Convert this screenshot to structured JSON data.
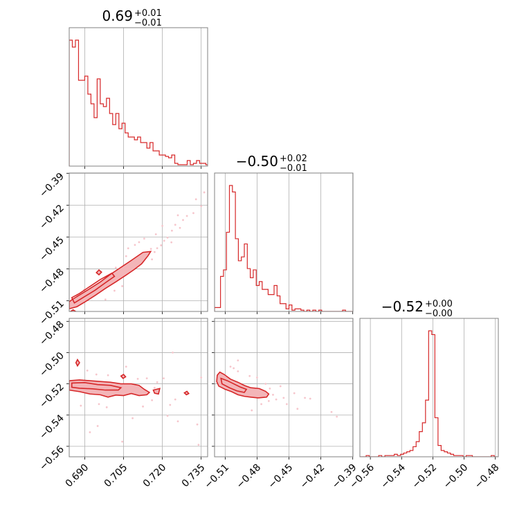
{
  "chart_data": {
    "type": "corner",
    "colors": {
      "main": "#d62728",
      "fill": "#f3b5b8",
      "points": "#f6c6cc",
      "grid": "#b0b0b0",
      "frame": "#808080"
    },
    "params": [
      {
        "title_median": "0.69",
        "title_plus": "+0.01",
        "title_minus": "−0.01",
        "range": [
          0.684,
          0.7375
        ],
        "ticks": [
          0.69,
          0.705,
          0.72,
          0.735
        ],
        "tick_labels": [
          "0.690",
          "0.705",
          "0.720",
          "0.735"
        ]
      },
      {
        "title_median": "−0.50",
        "title_plus": "+0.02",
        "title_minus": "−0.01",
        "range": [
          -0.52,
          -0.3898
        ],
        "ticks": [
          -0.51,
          -0.48,
          -0.45,
          -0.42,
          -0.39
        ],
        "tick_labels": [
          "−0.51",
          "−0.48",
          "−0.45",
          "−0.42",
          "−0.39"
        ]
      },
      {
        "title_median": "−0.52",
        "title_plus": "+0.00",
        "title_minus": "−0.00",
        "range": [
          -0.5667,
          -0.4781
        ],
        "ticks": [
          -0.56,
          -0.54,
          -0.52,
          -0.5,
          -0.48
        ],
        "tick_labels": [
          "−0.56",
          "−0.54",
          "−0.52",
          "−0.50",
          "−0.48"
        ]
      }
    ],
    "histograms": [
      {
        "x": [
          0.684,
          0.6852,
          0.6864,
          0.6876,
          0.6888,
          0.69,
          0.6912,
          0.6924,
          0.6936,
          0.6948,
          0.696,
          0.6972,
          0.6984,
          0.6996,
          0.7008,
          0.702,
          0.7032,
          0.7044,
          0.7056,
          0.7068,
          0.708,
          0.7092,
          0.7104,
          0.7116,
          0.7128,
          0.714,
          0.7152,
          0.7164,
          0.7176,
          0.7188,
          0.72,
          0.7212,
          0.7224,
          0.7236,
          0.7248,
          0.726,
          0.7272,
          0.7284,
          0.7296,
          0.7308,
          0.732,
          0.7332,
          0.7344,
          0.7356,
          0.7368
        ],
        "values": [
          91,
          86,
          91,
          62,
          62,
          65,
          52,
          45,
          35,
          63,
          45,
          43,
          49,
          38,
          30,
          38,
          27,
          31,
          24,
          21,
          21,
          19,
          21,
          17,
          17,
          13,
          17,
          11,
          11,
          8,
          8,
          7,
          6,
          8,
          2,
          1,
          1,
          1,
          4,
          1,
          2,
          4,
          2,
          2,
          1
        ]
      },
      {
        "x": [
          -0.52,
          -0.5172,
          -0.5144,
          -0.5116,
          -0.5088,
          -0.506,
          -0.5032,
          -0.5004,
          -0.4976,
          -0.4948,
          -0.492,
          -0.4892,
          -0.4864,
          -0.4836,
          -0.4808,
          -0.478,
          -0.4752,
          -0.4724,
          -0.4696,
          -0.4668,
          -0.464,
          -0.4612,
          -0.4584,
          -0.4556,
          -0.4528,
          -0.45,
          -0.4472,
          -0.4444,
          -0.4416,
          -0.4388,
          -0.436,
          -0.4332,
          -0.4304,
          -0.4276,
          -0.4248,
          -0.422,
          -0.4192,
          -0.4164,
          -0.4136,
          -0.4108,
          -0.408,
          -0.4052,
          -0.4024,
          -0.3996,
          -0.3968,
          -0.394,
          -0.3912
        ],
        "values": [
          3,
          3,
          27,
          32,
          61,
          97,
          92,
          56,
          39,
          42,
          52,
          33,
          26,
          32,
          20,
          23,
          17,
          17,
          13,
          13,
          20,
          12,
          6,
          6,
          2,
          5,
          1,
          2,
          2,
          1,
          0,
          1,
          0,
          1,
          0,
          1,
          0,
          0,
          0,
          0,
          0,
          0,
          0,
          1,
          0,
          0,
          0
        ]
      },
      {
        "x": [
          -0.5667,
          -0.5647,
          -0.5627,
          -0.5607,
          -0.5587,
          -0.5567,
          -0.5547,
          -0.5527,
          -0.5507,
          -0.5487,
          -0.5467,
          -0.5447,
          -0.5427,
          -0.5407,
          -0.5387,
          -0.5367,
          -0.5347,
          -0.5327,
          -0.5307,
          -0.5287,
          -0.5267,
          -0.5247,
          -0.5227,
          -0.5207,
          -0.5187,
          -0.5167,
          -0.5147,
          -0.5127,
          -0.5107,
          -0.5087,
          -0.5067,
          -0.5047,
          -0.5027,
          -0.5007,
          -0.4987,
          -0.4967,
          -0.4947,
          -0.4927,
          -0.4907,
          -0.4887,
          -0.4867,
          -0.4847,
          -0.4827,
          -0.4807
        ],
        "values": [
          0,
          0,
          1,
          0,
          0,
          0,
          1,
          0,
          1,
          1,
          1,
          2,
          1,
          2,
          3,
          4,
          5,
          8,
          12,
          20,
          27,
          45,
          100,
          97,
          31,
          9,
          5,
          4,
          3,
          2,
          1,
          1,
          1,
          0,
          1,
          1,
          0,
          0,
          0,
          0,
          0,
          0,
          1,
          0
        ]
      }
    ],
    "pairs": [
      {
        "x_param": 0,
        "y_param": 1,
        "outer_contour": [
          [
            0.684,
            -0.5175
          ],
          [
            0.687,
            -0.5155
          ],
          [
            0.69,
            -0.5112
          ],
          [
            0.694,
            -0.505
          ],
          [
            0.698,
            -0.4983
          ],
          [
            0.702,
            -0.4922
          ],
          [
            0.706,
            -0.4858
          ],
          [
            0.709,
            -0.4808
          ],
          [
            0.712,
            -0.4752
          ],
          [
            0.7145,
            -0.4675
          ],
          [
            0.7155,
            -0.4636
          ],
          [
            0.7125,
            -0.4644
          ],
          [
            0.708,
            -0.472
          ],
          [
            0.704,
            -0.4785
          ],
          [
            0.7,
            -0.485
          ],
          [
            0.696,
            -0.4923
          ],
          [
            0.692,
            -0.4985
          ],
          [
            0.688,
            -0.5045
          ],
          [
            0.685,
            -0.509
          ],
          [
            0.684,
            -0.511
          ]
        ],
        "inner_contour": [
          [
            0.686,
            -0.512
          ],
          [
            0.69,
            -0.506
          ],
          [
            0.694,
            -0.5
          ],
          [
            0.698,
            -0.493
          ],
          [
            0.7015,
            -0.487
          ],
          [
            0.7005,
            -0.484
          ],
          [
            0.696,
            -0.49
          ],
          [
            0.692,
            -0.4965
          ],
          [
            0.688,
            -0.503
          ],
          [
            0.685,
            -0.507
          ]
        ],
        "islands": [
          [
            [
              0.6945,
              -0.4835
            ],
            [
              0.6955,
              -0.481
            ],
            [
              0.6965,
              -0.483
            ],
            [
              0.6955,
              -0.4855
            ]
          ],
          [
            [
              0.6845,
              -0.52
            ],
            [
              0.6855,
              -0.5185
            ],
            [
              0.6865,
              -0.52
            ],
            [
              0.6855,
              -0.5215
            ]
          ]
        ],
        "points": [
          [
            0.7138,
            -0.4668
          ],
          [
            0.7156,
            -0.4612
          ],
          [
            0.717,
            -0.4641
          ],
          [
            0.718,
            -0.4605
          ],
          [
            0.7195,
            -0.4578
          ],
          [
            0.7207,
            -0.4535
          ],
          [
            0.722,
            -0.4506
          ],
          [
            0.7235,
            -0.455
          ],
          [
            0.725,
            -0.4385
          ],
          [
            0.7268,
            -0.4414
          ],
          [
            0.728,
            -0.434
          ],
          [
            0.7295,
            -0.4302
          ],
          [
            0.732,
            -0.4275
          ],
          [
            0.735,
            -0.421
          ],
          [
            0.733,
            -0.4145
          ],
          [
            0.7362,
            -0.408
          ],
          [
            0.711,
            -0.4548
          ],
          [
            0.7094,
            -0.4574
          ],
          [
            0.7068,
            -0.4606
          ],
          [
            0.708,
            -0.475
          ],
          [
            0.702,
            -0.4788
          ],
          [
            0.6998,
            -0.492
          ],
          [
            0.6945,
            -0.503
          ],
          [
            0.6912,
            -0.5082
          ],
          [
            0.6898,
            -0.4995
          ],
          [
            0.6872,
            -0.5054
          ],
          [
            0.7045,
            -0.4962
          ],
          [
            0.7015,
            -0.5005
          ],
          [
            0.698,
            -0.5088
          ],
          [
            0.72,
            -0.4395
          ],
          [
            0.7175,
            -0.4474
          ],
          [
            0.7237,
            -0.444
          ],
          [
            0.726,
            -0.4295
          ],
          [
            0.716,
            -0.471
          ],
          [
            0.713,
            -0.4515
          ],
          [
            0.706,
            -0.468
          ]
        ]
      },
      {
        "x_param": 0,
        "y_param": 2,
        "outer_contour": [
          [
            0.684,
            -0.518
          ],
          [
            0.688,
            -0.5175
          ],
          [
            0.692,
            -0.518
          ],
          [
            0.696,
            -0.5185
          ],
          [
            0.7,
            -0.519
          ],
          [
            0.704,
            -0.52
          ],
          [
            0.708,
            -0.52
          ],
          [
            0.711,
            -0.521
          ],
          [
            0.713,
            -0.5235
          ],
          [
            0.715,
            -0.5255
          ],
          [
            0.714,
            -0.527
          ],
          [
            0.711,
            -0.5275
          ],
          [
            0.708,
            -0.5262
          ],
          [
            0.705,
            -0.5275
          ],
          [
            0.702,
            -0.5272
          ],
          [
            0.699,
            -0.5285
          ],
          [
            0.696,
            -0.527
          ],
          [
            0.692,
            -0.5265
          ],
          [
            0.688,
            -0.525
          ],
          [
            0.684,
            -0.524
          ]
        ],
        "inner_contour": [
          [
            0.685,
            -0.5195
          ],
          [
            0.69,
            -0.5192
          ],
          [
            0.695,
            -0.5205
          ],
          [
            0.7,
            -0.521
          ],
          [
            0.704,
            -0.5225
          ],
          [
            0.703,
            -0.524
          ],
          [
            0.698,
            -0.524
          ],
          [
            0.693,
            -0.5232
          ],
          [
            0.688,
            -0.5228
          ],
          [
            0.685,
            -0.5222
          ]
        ],
        "islands": [
          [
            [
              0.6866,
              -0.5065
            ],
            [
              0.6872,
              -0.5045
            ],
            [
              0.688,
              -0.5065
            ],
            [
              0.6872,
              -0.5085
            ]
          ],
          [
            [
              0.7165,
              -0.524
            ],
            [
              0.719,
              -0.523
            ],
            [
              0.7185,
              -0.5265
            ],
            [
              0.717,
              -0.526
            ]
          ],
          [
            [
              0.7285,
              -0.5258
            ],
            [
              0.7295,
              -0.5248
            ],
            [
              0.7302,
              -0.5262
            ],
            [
              0.7293,
              -0.527
            ]
          ],
          [
            [
              0.704,
              -0.515
            ],
            [
              0.705,
              -0.514
            ],
            [
              0.7058,
              -0.5155
            ],
            [
              0.7048,
              -0.5165
            ]
          ]
        ],
        "points": [
          [
            0.691,
            -0.5115
          ],
          [
            0.6945,
            -0.514
          ],
          [
            0.699,
            -0.5145
          ],
          [
            0.706,
            -0.509
          ],
          [
            0.7105,
            -0.5168
          ],
          [
            0.714,
            -0.5165
          ],
          [
            0.718,
            -0.519
          ],
          [
            0.723,
            -0.5335
          ],
          [
            0.725,
            -0.53
          ],
          [
            0.722,
            -0.5405
          ],
          [
            0.726,
            -0.544
          ],
          [
            0.7335,
            -0.546
          ],
          [
            0.717,
            -0.5225
          ],
          [
            0.7085,
            -0.542
          ],
          [
            0.6955,
            -0.533
          ],
          [
            0.6885,
            -0.534
          ],
          [
            0.692,
            -0.551
          ],
          [
            0.7045,
            -0.557
          ],
          [
            0.7205,
            -0.5165
          ],
          [
            0.735,
            -0.516
          ],
          [
            0.6985,
            -0.535
          ],
          [
            0.7125,
            -0.5345
          ],
          [
            0.716,
            -0.5305
          ],
          [
            0.734,
            -0.559
          ],
          [
            0.695,
            -0.547
          ],
          [
            0.724,
            -0.5
          ]
        ]
      },
      {
        "x_param": 1,
        "y_param": 2,
        "outer_contour": [
          [
            -0.5175,
            -0.5145
          ],
          [
            -0.515,
            -0.5125
          ],
          [
            -0.511,
            -0.514
          ],
          [
            -0.505,
            -0.517
          ],
          [
            -0.498,
            -0.519
          ],
          [
            -0.492,
            -0.521
          ],
          [
            -0.486,
            -0.5225
          ],
          [
            -0.478,
            -0.523
          ],
          [
            -0.472,
            -0.5248
          ],
          [
            -0.469,
            -0.5265
          ],
          [
            -0.471,
            -0.5285
          ],
          [
            -0.479,
            -0.529
          ],
          [
            -0.486,
            -0.5285
          ],
          [
            -0.492,
            -0.528
          ],
          [
            -0.498,
            -0.527
          ],
          [
            -0.504,
            -0.525
          ],
          [
            -0.51,
            -0.5235
          ],
          [
            -0.516,
            -0.5215
          ],
          [
            -0.518,
            -0.5185
          ]
        ],
        "inner_contour": [
          [
            -0.514,
            -0.5165
          ],
          [
            -0.508,
            -0.518
          ],
          [
            -0.502,
            -0.52
          ],
          [
            -0.496,
            -0.522
          ],
          [
            -0.49,
            -0.5235
          ],
          [
            -0.492,
            -0.5255
          ],
          [
            -0.499,
            -0.5245
          ],
          [
            -0.506,
            -0.5225
          ],
          [
            -0.513,
            -0.52
          ]
        ],
        "islands": [],
        "points": [
          [
            -0.505,
            -0.509
          ],
          [
            -0.498,
            -0.512
          ],
          [
            -0.487,
            -0.515
          ],
          [
            -0.472,
            -0.52
          ],
          [
            -0.469,
            -0.531
          ],
          [
            -0.462,
            -0.53
          ],
          [
            -0.455,
            -0.529
          ],
          [
            -0.452,
            -0.533
          ],
          [
            -0.445,
            -0.526
          ],
          [
            -0.435,
            -0.529
          ],
          [
            -0.41,
            -0.538
          ],
          [
            -0.405,
            -0.541
          ],
          [
            -0.442,
            -0.536
          ],
          [
            -0.476,
            -0.533
          ],
          [
            -0.485,
            -0.537
          ],
          [
            -0.468,
            -0.523
          ],
          [
            -0.458,
            -0.5215
          ],
          [
            -0.498,
            -0.505
          ],
          [
            -0.502,
            -0.51
          ],
          [
            -0.48,
            -0.516
          ],
          [
            -0.43,
            -0.5295
          ],
          [
            -0.465,
            -0.527
          ]
        ]
      }
    ]
  }
}
